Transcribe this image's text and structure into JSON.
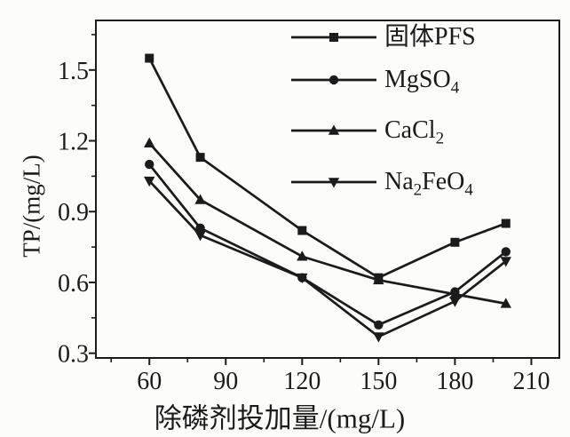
{
  "chart_data": {
    "type": "line",
    "title": "",
    "xlabel": "除磷剂投加量/(mg/L)",
    "ylabel": "TP/(mg/L)",
    "x": [
      60,
      80,
      120,
      150,
      180,
      200
    ],
    "series": [
      {
        "id": "pfs",
        "name": "固体PFS",
        "name_parts": [
          [
            "固体PFS",
            false
          ]
        ],
        "marker": "square",
        "values": [
          1.55,
          1.13,
          0.82,
          0.62,
          0.77,
          0.85
        ]
      },
      {
        "id": "mgso4",
        "name": "MgSO4",
        "name_parts": [
          [
            "MgSO",
            false
          ],
          [
            "4",
            true
          ]
        ],
        "marker": "circle",
        "values": [
          1.1,
          0.83,
          0.62,
          0.42,
          0.56,
          0.73
        ]
      },
      {
        "id": "cacl2",
        "name": "CaCl2",
        "name_parts": [
          [
            "CaCl",
            false
          ],
          [
            "2",
            true
          ]
        ],
        "marker": "triangle-up",
        "values": [
          1.19,
          0.95,
          0.71,
          0.61,
          0.55,
          0.51
        ]
      },
      {
        "id": "na2feo4",
        "name": "Na2FeO4",
        "name_parts": [
          [
            "Na",
            false
          ],
          [
            "2",
            true
          ],
          [
            "FeO",
            false
          ],
          [
            "4",
            true
          ]
        ],
        "marker": "triangle-down",
        "values": [
          1.03,
          0.8,
          0.62,
          0.37,
          0.52,
          0.69
        ]
      }
    ],
    "xlim": [
      39,
      221
    ],
    "ylim": [
      0.28,
      1.71
    ],
    "xticks": [
      60,
      90,
      120,
      150,
      180,
      210
    ],
    "xticks_minor": [
      45,
      75,
      105,
      135,
      165,
      195
    ],
    "yticks": [
      0.3,
      0.6,
      0.9,
      1.2,
      1.5
    ],
    "yticks_minor": [
      0.45,
      0.75,
      1.05,
      1.35,
      1.65
    ],
    "grid": false,
    "legend_position": "upper-right-inside",
    "line_color": "#1b1b1b",
    "background_color": "#fcfcfb"
  }
}
